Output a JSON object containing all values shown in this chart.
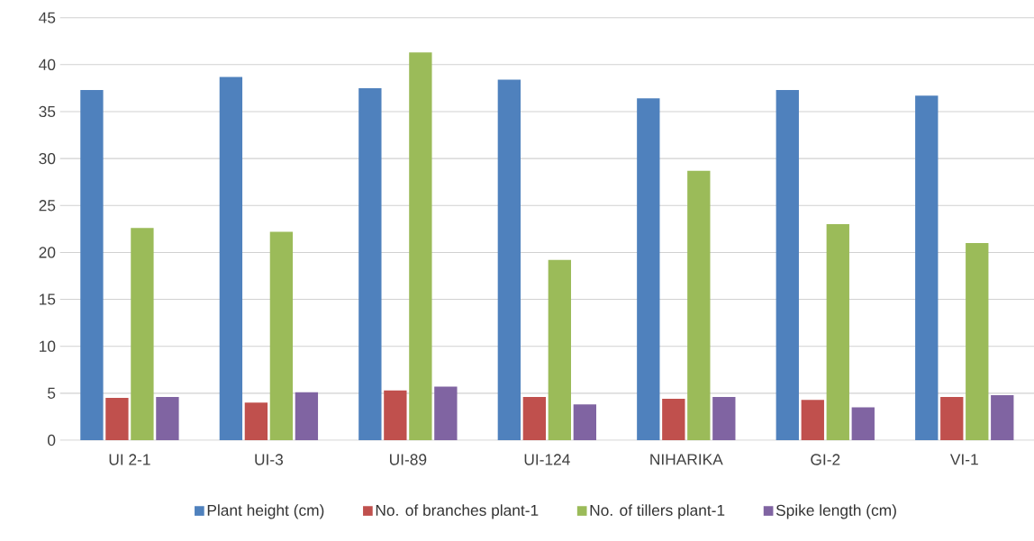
{
  "chart_data": {
    "type": "bar",
    "categories": [
      "UI 2-1",
      "UI-3",
      "UI-89",
      "UI-124",
      "NIHARIKA",
      "GI-2",
      "VI-1"
    ],
    "series": [
      {
        "name": "Plant height (cm)",
        "color": "#4f81bd",
        "values": [
          37.3,
          38.7,
          37.5,
          38.4,
          36.4,
          37.3,
          36.7
        ]
      },
      {
        "name": "No. of branches plant-1",
        "color": "#c0504d",
        "values": [
          4.5,
          4.0,
          5.3,
          4.6,
          4.4,
          4.3,
          4.6
        ]
      },
      {
        "name": "No. of tillers plant-1",
        "color": "#9bbb59",
        "values": [
          22.6,
          22.2,
          41.3,
          19.2,
          28.7,
          23.0,
          21.0
        ]
      },
      {
        "name": "Spike length (cm)",
        "color": "#8064a2",
        "values": [
          4.6,
          5.1,
          5.7,
          3.8,
          4.6,
          3.5,
          4.8
        ]
      }
    ],
    "ylim": [
      0,
      45
    ],
    "yticks": [
      0,
      5,
      10,
      15,
      20,
      25,
      30,
      35,
      40,
      45
    ],
    "grid": "y",
    "legend": "bottom"
  }
}
